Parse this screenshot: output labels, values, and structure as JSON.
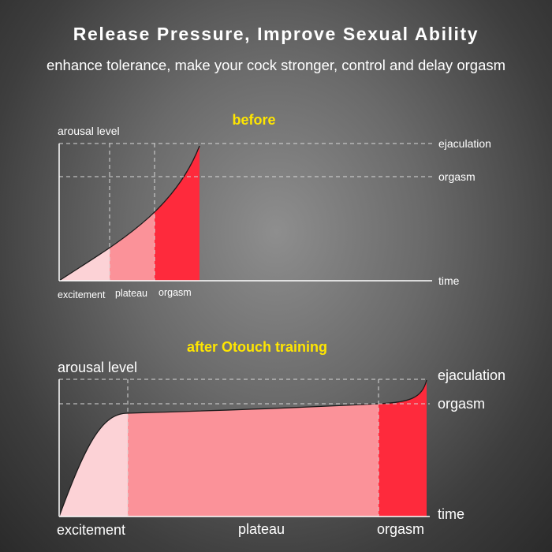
{
  "header": {
    "title": "Release Pressure, Improve Sexual Ability",
    "subtitle": "enhance tolerance, make your cock stronger, control and delay orgasm"
  },
  "colors": {
    "excitement": "#fcd2d6",
    "plateau": "#fb9299",
    "orgasm": "#fe2a3c",
    "title": "#ffe600",
    "text": "#ffffff"
  },
  "before": {
    "title": "before",
    "y_label": "arousal level",
    "x_label": "time",
    "level_ejaculation": "ejaculation",
    "level_orgasm": "orgasm",
    "phase_excitement": "excitement",
    "phase_plateau": "plateau",
    "phase_orgasm": "orgasm"
  },
  "after": {
    "title": "after Otouch training",
    "y_label": "arousal level",
    "x_label": "time",
    "level_ejaculation": "ejaculation",
    "level_orgasm": "orgasm",
    "phase_excitement": "excitement",
    "phase_plateau": "plateau",
    "phase_orgasm": "orgasm"
  }
}
